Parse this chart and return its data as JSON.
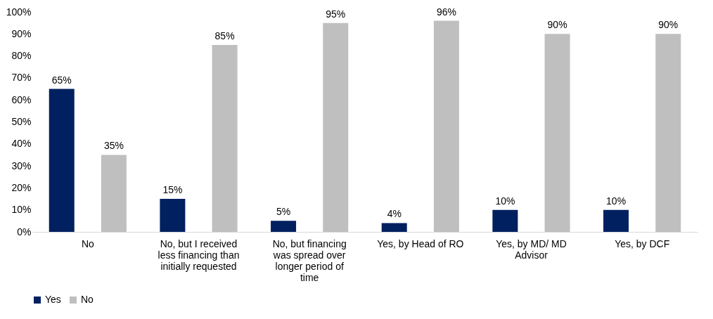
{
  "chart_data": {
    "type": "bar",
    "categories": [
      "No",
      "No, but I received less financing than initially requested",
      "No, but financing was spread over longer period of time",
      "Yes, by Head of RO",
      "Yes, by MD/ MD Advisor",
      "Yes, by DCF"
    ],
    "series": [
      {
        "name": "Yes",
        "color": "#002060",
        "values": [
          65,
          15,
          5,
          4,
          10,
          10
        ]
      },
      {
        "name": "No",
        "color": "#bfbfbf",
        "values": [
          35,
          85,
          95,
          96,
          90,
          90
        ]
      }
    ],
    "ylim": [
      0,
      100
    ],
    "yticks": [
      {
        "value": 0,
        "label": "0%"
      },
      {
        "value": 10,
        "label": "10%"
      },
      {
        "value": 20,
        "label": "20%"
      },
      {
        "value": 30,
        "label": "30%"
      },
      {
        "value": 40,
        "label": "40%"
      },
      {
        "value": 50,
        "label": "50%"
      },
      {
        "value": 60,
        "label": "60%"
      },
      {
        "value": 70,
        "label": "70%"
      },
      {
        "value": 80,
        "label": "80%"
      },
      {
        "value": 90,
        "label": "90%"
      },
      {
        "value": 100,
        "label": "100%"
      }
    ],
    "value_labels": [
      [
        "65%",
        "15%",
        "5%",
        "4%",
        "10%",
        "10%"
      ],
      [
        "35%",
        "85%",
        "95%",
        "96%",
        "90%",
        "90%"
      ]
    ],
    "grid": false,
    "legend": "bottom"
  }
}
